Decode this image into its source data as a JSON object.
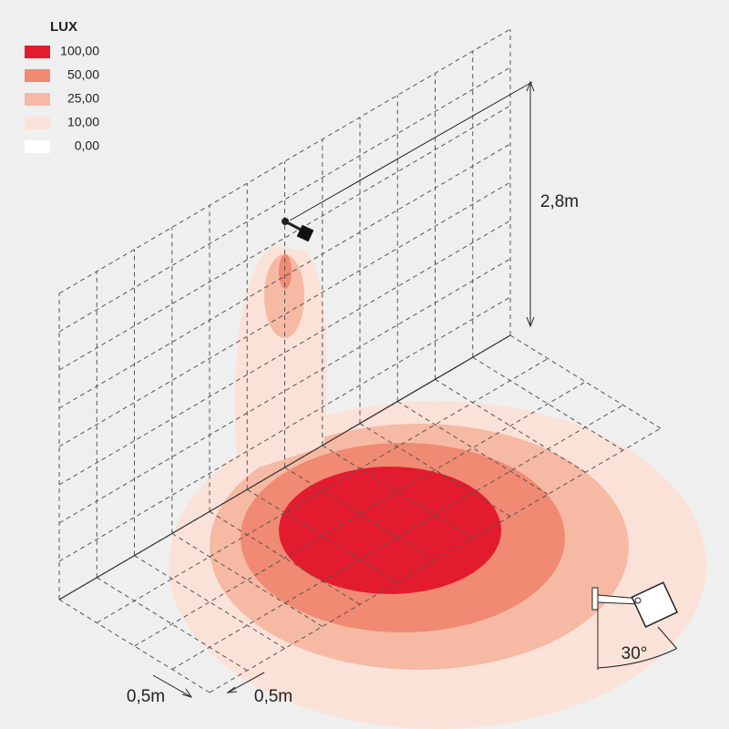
{
  "legend": {
    "title": "LUX",
    "items": [
      {
        "label": "100,00",
        "color": "#e31b2e"
      },
      {
        "label": "50,00",
        "color": "#f08a72"
      },
      {
        "label": "25,00",
        "color": "#f6b9a4"
      },
      {
        "label": "10,00",
        "color": "#fbe2d8"
      },
      {
        "label": "0,00",
        "color": "#ffffff"
      }
    ]
  },
  "dimensions": {
    "height": "2,8m",
    "grid_x": "0,5m",
    "grid_y": "0,5m",
    "angle": "30°"
  }
}
